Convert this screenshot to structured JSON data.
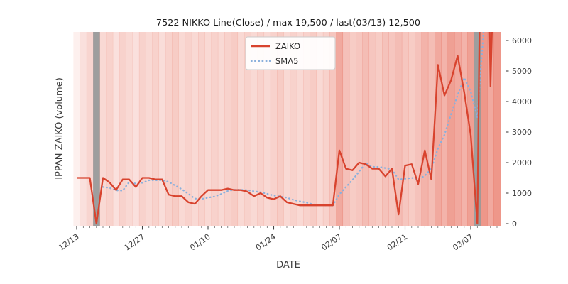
{
  "chart_data": {
    "type": "line",
    "title": "7522 NIKKO Line(Close) / max 19,500 / last(03/13) 12,500",
    "xlabel": "DATE",
    "ylabel": "IPPAN ZAIKO (volume)",
    "ylim": [
      0,
      6280
    ],
    "yticks": [
      0,
      1000,
      2000,
      3000,
      4000,
      5000,
      6000
    ],
    "xtick_labels": [
      "12/13",
      "12/27",
      "01/10",
      "01/24",
      "02/07",
      "02/21",
      "03/07"
    ],
    "xtick_indices": [
      0,
      10,
      20,
      30,
      40,
      50,
      60
    ],
    "n_points": 65,
    "series": [
      {
        "name": "ZAIKO",
        "color": "#d8432e",
        "style": "solid",
        "values": [
          1500,
          1500,
          1500,
          0,
          1500,
          1350,
          1100,
          1450,
          1450,
          1200,
          1500,
          1500,
          1450,
          1450,
          950,
          900,
          900,
          700,
          650,
          900,
          1100,
          1100,
          1100,
          1150,
          1100,
          1100,
          1050,
          900,
          1000,
          850,
          800,
          900,
          700,
          650,
          600,
          600,
          600,
          600,
          600,
          600,
          2400,
          1800,
          1750,
          2000,
          1950,
          1800,
          1800,
          1550,
          1800,
          300,
          1900,
          1950,
          1300,
          2400,
          1450,
          5200,
          4200,
          4700,
          5500,
          4300,
          2900,
          0,
          19500,
          4500,
          12500
        ]
      },
      {
        "name": "SMA5",
        "color": "#8ab0dc",
        "style": "dotted",
        "values": [
          null,
          null,
          null,
          null,
          1200,
          1170,
          1090,
          1080,
          1370,
          1310,
          1340,
          1420,
          1420,
          1420,
          1370,
          1250,
          1130,
          980,
          820,
          810,
          850,
          890,
          970,
          1070,
          1110,
          1110,
          1100,
          1060,
          1030,
          980,
          920,
          890,
          850,
          780,
          730,
          690,
          630,
          610,
          600,
          600,
          960,
          1200,
          1430,
          1710,
          1980,
          1860,
          1860,
          1820,
          1780,
          1450,
          1470,
          1500,
          1450,
          1570,
          1800,
          2460,
          2910,
          3590,
          4210,
          4780,
          4320,
          3480,
          6440,
          6240,
          7880
        ]
      }
    ],
    "background_bands": {
      "red_color": "#e0412a",
      "gray_color": "#7d7d7d",
      "gray_indices": [
        3,
        61
      ],
      "red_alpha": [
        0.08,
        0.16,
        0.22,
        0,
        0.2,
        0.24,
        0.16,
        0.24,
        0.2,
        0.16,
        0.24,
        0.2,
        0.24,
        0.18,
        0.24,
        0.27,
        0.2,
        0.24,
        0.2,
        0.24,
        0.2,
        0.24,
        0.2,
        0.24,
        0.27,
        0.2,
        0.24,
        0.2,
        0.24,
        0.2,
        0.24,
        0.27,
        0.2,
        0.24,
        0.2,
        0.24,
        0.27,
        0.2,
        0.24,
        0.3,
        0.45,
        0.33,
        0.27,
        0.3,
        0.35,
        0.3,
        0.27,
        0.32,
        0.3,
        0.35,
        0.3,
        0.27,
        0.32,
        0.4,
        0.35,
        0.45,
        0.4,
        0.5,
        0.45,
        0.4,
        0.5,
        0,
        0.55,
        0.45,
        0.55
      ]
    }
  },
  "legend": {
    "items": [
      {
        "label": "ZAIKO"
      },
      {
        "label": "SMA5"
      }
    ]
  }
}
